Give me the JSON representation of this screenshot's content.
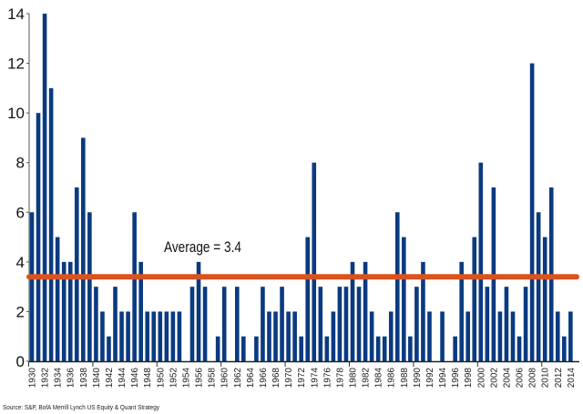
{
  "chart_data": {
    "type": "bar",
    "title": "",
    "xlabel": "",
    "ylabel": "",
    "ylim": [
      0,
      14
    ],
    "yticks": [
      0,
      2,
      4,
      6,
      8,
      10,
      12,
      14
    ],
    "grid": false,
    "bar_color": "#0a3a80",
    "average_color": "#d9531e",
    "categories": [
      1930,
      1931,
      1932,
      1933,
      1934,
      1935,
      1936,
      1937,
      1938,
      1939,
      1940,
      1941,
      1942,
      1943,
      1944,
      1945,
      1946,
      1947,
      1948,
      1949,
      1950,
      1951,
      1952,
      1953,
      1954,
      1955,
      1956,
      1957,
      1958,
      1959,
      1960,
      1961,
      1962,
      1963,
      1964,
      1965,
      1966,
      1967,
      1968,
      1969,
      1970,
      1971,
      1972,
      1973,
      1974,
      1975,
      1976,
      1977,
      1978,
      1979,
      1980,
      1981,
      1982,
      1983,
      1984,
      1985,
      1986,
      1987,
      1988,
      1989,
      1990,
      1991,
      1992,
      1993,
      1994,
      1995,
      1996,
      1997,
      1998,
      1999,
      2000,
      2001,
      2002,
      2003,
      2004,
      2005,
      2006,
      2007,
      2008,
      2009,
      2010,
      2011,
      2012,
      2013,
      2014
    ],
    "values": [
      6,
      10,
      14,
      11,
      5,
      4,
      4,
      7,
      9,
      6,
      3,
      2,
      1,
      3,
      2,
      2,
      6,
      4,
      2,
      2,
      2,
      2,
      2,
      2,
      0,
      3,
      4,
      3,
      0,
      1,
      3,
      0,
      3,
      1,
      0,
      1,
      3,
      2,
      2,
      3,
      2,
      2,
      1,
      5,
      8,
      3,
      1,
      2,
      3,
      3,
      4,
      3,
      4,
      2,
      1,
      1,
      2,
      6,
      5,
      1,
      3,
      4,
      2,
      0,
      2,
      0,
      1,
      4,
      2,
      5,
      8,
      3,
      7,
      2,
      3,
      2,
      1,
      3,
      12,
      6,
      5,
      7,
      2,
      1,
      2
    ],
    "average": 3.4,
    "average_label": "Average = 3.4",
    "source": "Source: S&P, BofA Merrill Lynch US Equity & Quant Strategy"
  }
}
